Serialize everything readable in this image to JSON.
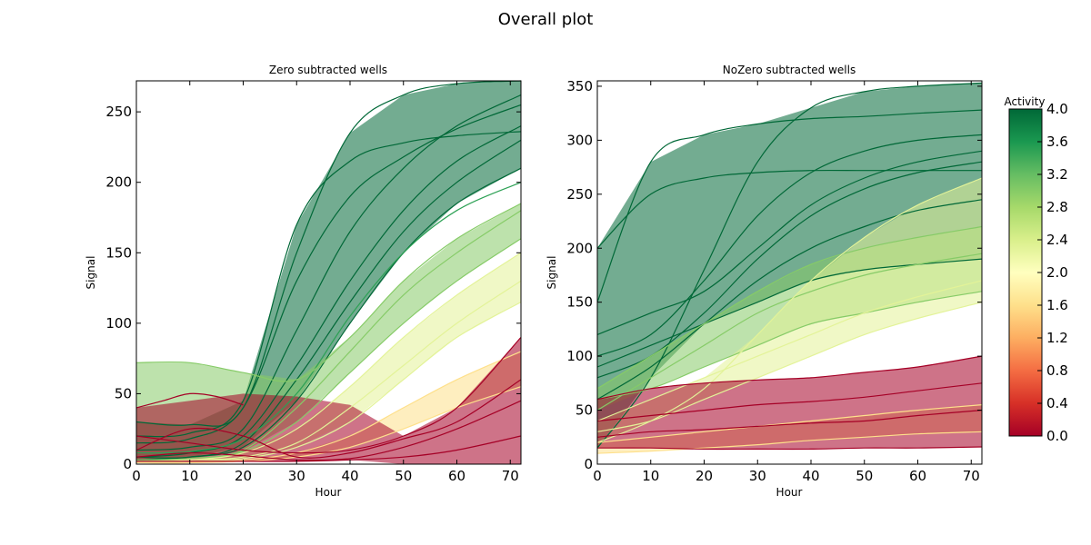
{
  "figure": {
    "title": "Overall plot"
  },
  "chart_data": [
    {
      "type": "line",
      "title": "Zero subtracted wells",
      "xlabel": "Hour",
      "ylabel": "Signal",
      "xlim": [
        0,
        72
      ],
      "ylim": [
        0,
        272
      ],
      "x_ticks": [
        "0",
        "10",
        "20",
        "30",
        "40",
        "50",
        "60",
        "70"
      ],
      "y_ticks": [
        "0",
        "50",
        "100",
        "150",
        "200",
        "250"
      ],
      "grid": false,
      "color_by": "Activity",
      "series": [
        {
          "activity": 4.0,
          "x": [
            0,
            10,
            20,
            30,
            40,
            50,
            60,
            72
          ],
          "y": [
            20,
            22,
            45,
            170,
            215,
            228,
            233,
            236
          ]
        },
        {
          "activity": 4.0,
          "x": [
            0,
            10,
            20,
            30,
            40,
            50,
            60,
            72
          ],
          "y": [
            15,
            18,
            40,
            130,
            190,
            218,
            238,
            255
          ]
        },
        {
          "activity": 4.0,
          "x": [
            0,
            10,
            20,
            30,
            40,
            50,
            60,
            72
          ],
          "y": [
            10,
            12,
            25,
            95,
            165,
            210,
            240,
            262
          ]
        },
        {
          "activity": 4.0,
          "x": [
            0,
            10,
            20,
            30,
            40,
            50,
            60,
            72
          ],
          "y": [
            30,
            28,
            40,
            150,
            235,
            262,
            270,
            272
          ]
        },
        {
          "activity": 4.0,
          "x": [
            0,
            10,
            20,
            30,
            40,
            50,
            60,
            72
          ],
          "y": [
            5,
            8,
            20,
            70,
            130,
            180,
            215,
            240
          ]
        },
        {
          "activity": 4.0,
          "x": [
            0,
            10,
            20,
            30,
            40,
            50,
            60,
            72
          ],
          "y": [
            5,
            5,
            15,
            60,
            115,
            165,
            200,
            230
          ]
        },
        {
          "activity": 4.0,
          "x": [
            0,
            10,
            20,
            30,
            40,
            50,
            60,
            72
          ],
          "y": [
            3,
            5,
            12,
            45,
            100,
            150,
            185,
            210
          ]
        },
        {
          "activity": 3.5,
          "x": [
            0,
            10,
            20,
            30,
            40,
            50,
            60,
            72
          ],
          "y": [
            8,
            9,
            18,
            50,
            105,
            150,
            180,
            200
          ]
        },
        {
          "activity": 3.0,
          "x": [
            0,
            10,
            20,
            30,
            40,
            50,
            60,
            72
          ],
          "y": [
            2,
            4,
            10,
            40,
            80,
            120,
            150,
            180
          ]
        },
        {
          "activity": 3.0,
          "x": [
            0,
            10,
            20,
            30,
            40,
            50,
            60,
            72
          ],
          "y": [
            3,
            4,
            9,
            30,
            65,
            100,
            130,
            160
          ]
        },
        {
          "activity": 3.0,
          "x": [
            0,
            10,
            20,
            30,
            40,
            50,
            60,
            72
          ],
          "y": [
            72,
            72,
            65,
            60,
            90,
            130,
            160,
            185
          ]
        },
        {
          "activity": 2.3,
          "x": [
            0,
            10,
            20,
            30,
            40,
            50,
            60,
            72
          ],
          "y": [
            2,
            3,
            8,
            25,
            55,
            90,
            120,
            150
          ]
        },
        {
          "activity": 2.3,
          "x": [
            0,
            10,
            20,
            30,
            40,
            50,
            60,
            72
          ],
          "y": [
            2,
            3,
            5,
            15,
            40,
            70,
            100,
            130
          ]
        },
        {
          "activity": 2.3,
          "x": [
            0,
            10,
            20,
            30,
            40,
            50,
            60,
            72
          ],
          "y": [
            1,
            2,
            4,
            12,
            30,
            60,
            90,
            115
          ]
        },
        {
          "activity": 1.6,
          "x": [
            0,
            10,
            20,
            30,
            40,
            50,
            60,
            72
          ],
          "y": [
            1,
            1,
            3,
            8,
            20,
            40,
            60,
            80
          ]
        },
        {
          "activity": 1.6,
          "x": [
            0,
            10,
            20,
            30,
            40,
            50,
            60,
            72
          ],
          "y": [
            1,
            1,
            2,
            5,
            12,
            25,
            40,
            55
          ]
        },
        {
          "activity": 0.0,
          "x": [
            0,
            10,
            20,
            30,
            40,
            50,
            60,
            72
          ],
          "y": [
            20,
            15,
            10,
            8,
            10,
            20,
            40,
            90
          ]
        },
        {
          "activity": 0.0,
          "x": [
            0,
            10,
            20,
            30,
            40,
            50,
            60,
            72
          ],
          "y": [
            10,
            25,
            20,
            5,
            8,
            18,
            30,
            60
          ]
        },
        {
          "activity": 0.0,
          "x": [
            0,
            10,
            20,
            30,
            40,
            50,
            60,
            72
          ],
          "y": [
            5,
            8,
            6,
            3,
            4,
            12,
            25,
            45
          ]
        },
        {
          "activity": 0.0,
          "x": [
            0,
            10,
            20,
            30,
            40,
            50,
            60,
            72
          ],
          "y": [
            2,
            2,
            2,
            2,
            3,
            5,
            10,
            20
          ]
        },
        {
          "activity": 0.0,
          "x": [
            0,
            5,
            10,
            15,
            20
          ],
          "y": [
            40,
            45,
            50,
            48,
            42
          ]
        }
      ]
    },
    {
      "type": "line",
      "title": "NoZero subtracted wells",
      "xlabel": "Hour",
      "ylabel": "Signal",
      "xlim": [
        0,
        72
      ],
      "ylim": [
        0,
        355
      ],
      "x_ticks": [
        "0",
        "10",
        "20",
        "30",
        "40",
        "50",
        "60",
        "70"
      ],
      "y_ticks": [
        "0",
        "50",
        "100",
        "150",
        "200",
        "250",
        "300",
        "350"
      ],
      "grid": false,
      "color_by": "Activity",
      "series": [
        {
          "activity": 4.0,
          "x": [
            0,
            10,
            20,
            30,
            40,
            50,
            60,
            72
          ],
          "y": [
            200,
            250,
            265,
            270,
            272,
            272,
            272,
            272
          ]
        },
        {
          "activity": 4.0,
          "x": [
            0,
            10,
            20,
            30,
            40,
            50,
            60,
            72
          ],
          "y": [
            150,
            280,
            305,
            315,
            320,
            322,
            325,
            328
          ]
        },
        {
          "activity": 4.0,
          "x": [
            0,
            10,
            20,
            30,
            40,
            50,
            60,
            72
          ],
          "y": [
            15,
            80,
            180,
            280,
            330,
            345,
            350,
            353
          ]
        },
        {
          "activity": 4.0,
          "x": [
            0,
            10,
            20,
            30,
            40,
            50,
            60,
            72
          ],
          "y": [
            100,
            120,
            170,
            230,
            270,
            290,
            300,
            305
          ]
        },
        {
          "activity": 4.0,
          "x": [
            0,
            10,
            20,
            30,
            40,
            50,
            60,
            72
          ],
          "y": [
            120,
            140,
            160,
            200,
            240,
            265,
            280,
            290
          ]
        },
        {
          "activity": 4.0,
          "x": [
            0,
            10,
            20,
            30,
            40,
            50,
            60,
            72
          ],
          "y": [
            80,
            100,
            140,
            190,
            230,
            255,
            270,
            280
          ]
        },
        {
          "activity": 4.0,
          "x": [
            0,
            10,
            20,
            30,
            40,
            50,
            60,
            72
          ],
          "y": [
            60,
            90,
            130,
            170,
            200,
            220,
            235,
            245
          ]
        },
        {
          "activity": 4.0,
          "x": [
            0,
            10,
            20,
            30,
            40,
            50,
            60,
            72
          ],
          "y": [
            90,
            110,
            130,
            150,
            170,
            180,
            185,
            190
          ]
        },
        {
          "activity": 3.0,
          "x": [
            0,
            10,
            20,
            30,
            40,
            50,
            60,
            72
          ],
          "y": [
            70,
            100,
            130,
            160,
            185,
            200,
            210,
            220
          ]
        },
        {
          "activity": 3.0,
          "x": [
            0,
            10,
            20,
            30,
            40,
            50,
            60,
            72
          ],
          "y": [
            50,
            80,
            110,
            140,
            160,
            175,
            185,
            195
          ]
        },
        {
          "activity": 3.0,
          "x": [
            0,
            10,
            20,
            30,
            40,
            50,
            60,
            72
          ],
          "y": [
            60,
            70,
            90,
            110,
            130,
            140,
            150,
            160
          ]
        },
        {
          "activity": 2.3,
          "x": [
            0,
            10,
            20,
            30,
            40,
            50,
            60,
            72
          ],
          "y": [
            20,
            40,
            70,
            120,
            170,
            210,
            240,
            265
          ]
        },
        {
          "activity": 2.3,
          "x": [
            0,
            10,
            20,
            30,
            40,
            50,
            60,
            72
          ],
          "y": [
            40,
            60,
            80,
            100,
            120,
            140,
            155,
            170
          ]
        },
        {
          "activity": 2.3,
          "x": [
            0,
            10,
            20,
            30,
            40,
            50,
            60,
            72
          ],
          "y": [
            30,
            40,
            60,
            80,
            100,
            120,
            135,
            150
          ]
        },
        {
          "activity": 1.6,
          "x": [
            0,
            10,
            20,
            30,
            40,
            50,
            60,
            72
          ],
          "y": [
            20,
            25,
            30,
            35,
            40,
            45,
            50,
            55
          ]
        },
        {
          "activity": 1.6,
          "x": [
            0,
            10,
            20,
            30,
            40,
            50,
            60,
            72
          ],
          "y": [
            10,
            12,
            15,
            18,
            22,
            25,
            28,
            30
          ]
        },
        {
          "activity": 0.0,
          "x": [
            0,
            10,
            20,
            30,
            40,
            50,
            60,
            72
          ],
          "y": [
            60,
            70,
            75,
            78,
            80,
            85,
            90,
            100
          ]
        },
        {
          "activity": 0.0,
          "x": [
            0,
            10,
            20,
            30,
            40,
            50,
            60,
            72
          ],
          "y": [
            40,
            45,
            50,
            55,
            58,
            62,
            68,
            75
          ]
        },
        {
          "activity": 0.0,
          "x": [
            0,
            10,
            20,
            30,
            40,
            50,
            60,
            72
          ],
          "y": [
            25,
            30,
            32,
            35,
            38,
            40,
            45,
            50
          ]
        },
        {
          "activity": 0.0,
          "x": [
            0,
            10,
            20,
            30,
            40,
            50,
            60,
            72
          ],
          "y": [
            15,
            15,
            14,
            14,
            14,
            15,
            15,
            16
          ]
        }
      ]
    }
  ],
  "colorbar": {
    "label": "Activity",
    "range": [
      0,
      4
    ],
    "ticks": [
      "0.0",
      "0.4",
      "0.8",
      "1.2",
      "1.6",
      "2.0",
      "2.4",
      "2.8",
      "3.2",
      "3.6",
      "4.0"
    ],
    "colors": [
      "#a50026",
      "#d73027",
      "#f46d43",
      "#fdae61",
      "#fee08b",
      "#ffffbf",
      "#d9ef8b",
      "#a6d96a",
      "#66bd63",
      "#1a9850",
      "#006837"
    ]
  }
}
